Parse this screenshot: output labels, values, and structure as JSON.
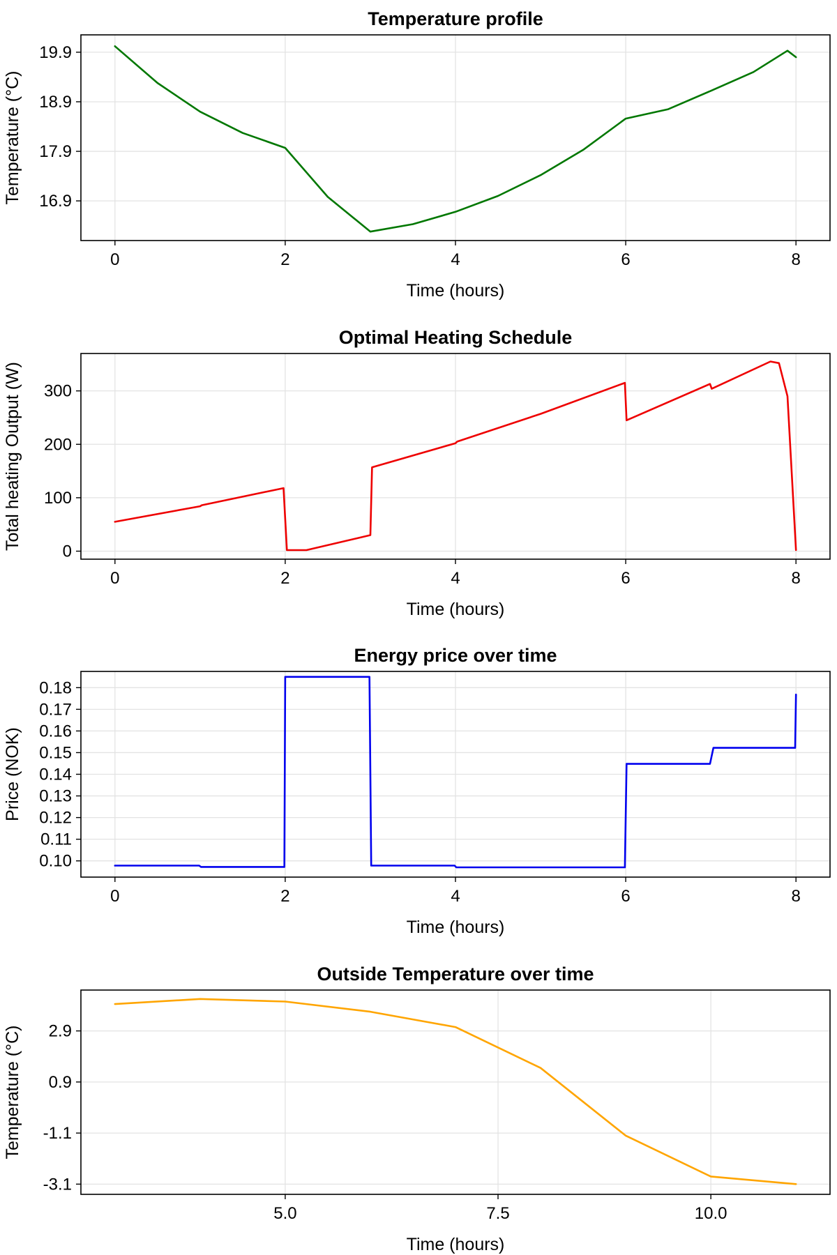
{
  "chart_data": [
    {
      "type": "line",
      "title": "Temperature profile",
      "xlabel": "Time (hours)",
      "ylabel": "Temperature (°C)",
      "xlim": [
        -0.4,
        8.4
      ],
      "ylim": [
        16.1,
        20.25
      ],
      "xticks": [
        0,
        2,
        4,
        6,
        8
      ],
      "xtick_labels": [
        "0",
        "2",
        "4",
        "6",
        "8"
      ],
      "yticks": [
        16.9,
        17.9,
        18.9,
        19.9
      ],
      "ytick_labels": [
        "16.9",
        "17.9",
        "18.9",
        "19.9"
      ],
      "grid": true,
      "color": "#007700",
      "x": [
        0,
        0.5,
        1,
        1.5,
        2,
        2.5,
        3,
        3.5,
        4,
        4.5,
        5,
        5.5,
        6,
        6.5,
        7,
        7.5,
        7.9,
        8
      ],
      "y": [
        20.02,
        19.28,
        18.7,
        18.27,
        17.97,
        16.98,
        16.28,
        16.43,
        16.68,
        17.0,
        17.42,
        17.93,
        18.56,
        18.75,
        19.12,
        19.5,
        19.93,
        19.8
      ]
    },
    {
      "type": "line",
      "title": "Optimal Heating Schedule",
      "xlabel": "Time (hours)",
      "ylabel": "Total heating Output (W)",
      "xlim": [
        -0.4,
        8.4
      ],
      "ylim": [
        -15,
        370
      ],
      "xticks": [
        0,
        2,
        4,
        6,
        8
      ],
      "xtick_labels": [
        "0",
        "2",
        "4",
        "6",
        "8"
      ],
      "yticks": [
        0,
        100,
        200,
        300
      ],
      "ytick_labels": [
        "0",
        "100",
        "200",
        "300"
      ],
      "grid": true,
      "color": "#ee0000",
      "x": [
        0,
        1,
        1.02,
        1.98,
        2.0,
        2.02,
        2.25,
        3.0,
        3.02,
        4.0,
        4.02,
        5.0,
        5.99,
        6.01,
        6.99,
        7.01,
        7.7,
        7.8,
        7.9,
        8.0
      ],
      "y": [
        55,
        84,
        86,
        118,
        60,
        2,
        2,
        30,
        157,
        202,
        205,
        257,
        315,
        245,
        313,
        304,
        355,
        352,
        290,
        2
      ]
    },
    {
      "type": "line",
      "title": "Energy price over time",
      "xlabel": "Time (hours)",
      "ylabel": "Price (NOK)",
      "xlim": [
        -0.4,
        8.4
      ],
      "ylim": [
        0.0925,
        0.1875
      ],
      "xticks": [
        0,
        2,
        4,
        6,
        8
      ],
      "xtick_labels": [
        "0",
        "2",
        "4",
        "6",
        "8"
      ],
      "yticks": [
        0.1,
        0.11,
        0.12,
        0.13,
        0.14,
        0.15,
        0.16,
        0.17,
        0.18
      ],
      "ytick_labels": [
        "0.10",
        "0.11",
        "0.12",
        "0.13",
        "0.14",
        "0.15",
        "0.16",
        "0.17",
        "0.18"
      ],
      "grid": true,
      "color": "#0000ee",
      "x": [
        0,
        0.99,
        1.01,
        1.99,
        2.0,
        2.99,
        3.01,
        3.99,
        4.01,
        5.99,
        6.01,
        6.99,
        7.03,
        7.99,
        8.0
      ],
      "y": [
        0.0978,
        0.0978,
        0.0972,
        0.0972,
        0.185,
        0.185,
        0.0978,
        0.0978,
        0.097,
        0.097,
        0.1448,
        0.1448,
        0.1522,
        0.1522,
        0.1768
      ]
    },
    {
      "type": "line",
      "title": "Outside Temperature over time",
      "xlabel": "Time (hours)",
      "ylabel": "Temperature (°C)",
      "xlim": [
        2.6,
        11.4
      ],
      "ylim": [
        -3.5,
        4.5
      ],
      "xticks": [
        5.0,
        7.5,
        10.0
      ],
      "xtick_labels": [
        "5.0",
        "7.5",
        "10.0"
      ],
      "yticks": [
        -3.1,
        -1.1,
        0.9,
        2.9
      ],
      "ytick_labels": [
        "-3.1",
        "-1.1",
        "0.9",
        "2.9"
      ],
      "grid": true,
      "color": "#ffa500",
      "x": [
        3,
        4,
        5,
        6,
        7,
        8,
        9,
        10,
        11
      ],
      "y": [
        3.95,
        4.15,
        4.05,
        3.65,
        3.05,
        1.45,
        -1.2,
        -2.8,
        -3.1
      ]
    }
  ]
}
